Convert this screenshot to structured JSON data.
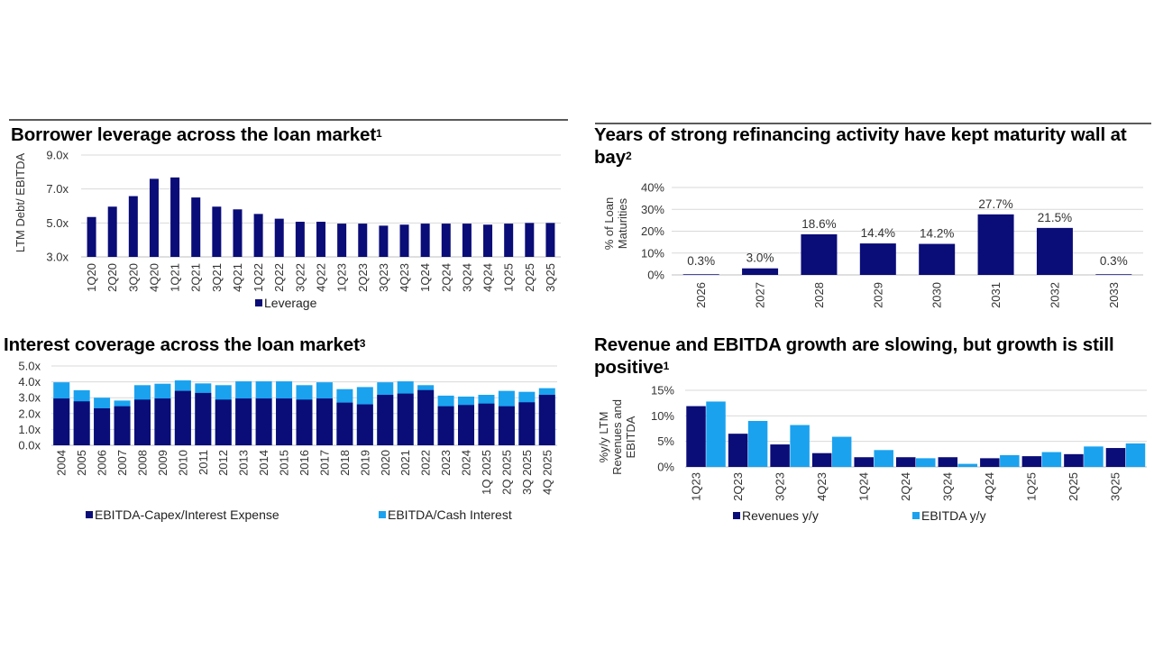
{
  "colors": {
    "navy": "#0a0c78",
    "light_blue": "#1aa2ef",
    "grid": "#d9d9d9"
  },
  "chart_data": [
    {
      "type": "bar",
      "title": "Borrower leverage across the loan market",
      "footnote": "1",
      "ylabel": "LTM Debt/ EBITDA",
      "ylim": [
        3,
        9
      ],
      "ytick_labels": [
        "3.0x",
        "5.0x",
        "7.0x",
        "9.0x"
      ],
      "grid": true,
      "legend": "bottom",
      "categories": [
        "1Q20",
        "2Q20",
        "3Q20",
        "4Q20",
        "1Q21",
        "2Q21",
        "3Q21",
        "4Q21",
        "1Q22",
        "2Q22",
        "3Q22",
        "4Q22",
        "1Q23",
        "2Q23",
        "3Q23",
        "4Q23",
        "1Q24",
        "2Q24",
        "3Q24",
        "4Q24",
        "1Q25",
        "2Q25",
        "3Q25"
      ],
      "series": [
        {
          "name": "Leverage",
          "color": "#0a0c78",
          "values": [
            5.35,
            5.96,
            6.58,
            7.6,
            7.68,
            6.5,
            5.96,
            5.8,
            5.53,
            5.25,
            5.07,
            5.07,
            4.96,
            4.96,
            4.84,
            4.9,
            4.96,
            4.96,
            4.96,
            4.9,
            4.96,
            5.0,
            5.0
          ]
        }
      ]
    },
    {
      "type": "bar",
      "title": "Years of strong refinancing activity have kept maturity wall at bay",
      "footnote": "2",
      "ylabel": "% of Loan Maturities",
      "ylim": [
        0,
        40
      ],
      "ytick_labels": [
        "0%",
        "10%",
        "20%",
        "30%",
        "40%"
      ],
      "grid": true,
      "categories": [
        "2026",
        "2027",
        "2028",
        "2029",
        "2030",
        "2031",
        "2032",
        "2033"
      ],
      "series": [
        {
          "color": "#0a0c78",
          "values": [
            0.3,
            3.0,
            18.6,
            14.4,
            14.2,
            27.7,
            21.5,
            0.3
          ]
        }
      ],
      "data_labels": [
        "0.3%",
        "3.0%",
        "18.6%",
        "14.4%",
        "14.2%",
        "27.7%",
        "21.5%",
        "0.3%"
      ]
    },
    {
      "type": "bar",
      "stacked_overlay": true,
      "title": "Interest coverage across the loan market",
      "footnote": "3",
      "ylabel": "",
      "ylim": [
        0,
        5
      ],
      "ytick_labels": [
        "0.0x",
        "1.0x",
        "2.0x",
        "3.0x",
        "4.0x",
        "5.0x"
      ],
      "grid": true,
      "legend": "bottom",
      "categories": [
        "2004",
        "2005",
        "2006",
        "2007",
        "2008",
        "2009",
        "2010",
        "2011",
        "2012",
        "2013",
        "2014",
        "2015",
        "2016",
        "2017",
        "2018",
        "2019",
        "2020",
        "2021",
        "2022",
        "2023",
        "2024",
        "1Q 2025",
        "2Q 2025",
        "3Q 2025",
        "4Q 2025"
      ],
      "series": [
        {
          "name": "EBITDA-Capex/Interest Expense",
          "color": "#0a0c78",
          "values": [
            2.95,
            2.77,
            2.33,
            2.46,
            2.88,
            2.95,
            3.43,
            3.3,
            2.88,
            2.95,
            2.95,
            2.95,
            2.88,
            2.95,
            2.69,
            2.58,
            3.18,
            3.26,
            3.48,
            2.46,
            2.54,
            2.63,
            2.46,
            2.71,
            3.18
          ]
        },
        {
          "name": "EBITDA/Cash Interest",
          "color": "#1aa2ef",
          "values": [
            3.97,
            3.47,
            3.0,
            2.82,
            3.79,
            3.88,
            4.09,
            3.9,
            3.79,
            4.03,
            4.03,
            4.03,
            3.79,
            3.97,
            3.54,
            3.67,
            3.97,
            4.03,
            3.79,
            3.13,
            3.07,
            3.18,
            3.43,
            3.37,
            3.6
          ]
        }
      ]
    },
    {
      "type": "bar",
      "title": "Revenue and EBITDA growth are slowing, but growth is still positive",
      "footnote": "1",
      "ylabel": "%y/y LTM Revenues and EBITDA",
      "ylim": [
        0,
        15
      ],
      "ytick_labels": [
        "0%",
        "5%",
        "10%",
        "15%"
      ],
      "grid": true,
      "legend": "bottom",
      "categories": [
        "1Q23",
        "2Q23",
        "3Q23",
        "4Q23",
        "1Q24",
        "2Q24",
        "3Q24",
        "4Q24",
        "1Q25",
        "2Q25",
        "3Q25"
      ],
      "series": [
        {
          "name": "Revenues y/y",
          "color": "#0a0c78",
          "values": [
            11.9,
            6.5,
            4.4,
            2.7,
            1.9,
            1.9,
            1.9,
            1.7,
            2.1,
            2.5,
            3.7
          ]
        },
        {
          "name": "EBITDA y/y",
          "color": "#1aa2ef",
          "values": [
            12.8,
            9.0,
            8.2,
            5.9,
            3.3,
            1.7,
            0.6,
            2.3,
            2.9,
            4.0,
            4.6
          ]
        }
      ]
    }
  ]
}
